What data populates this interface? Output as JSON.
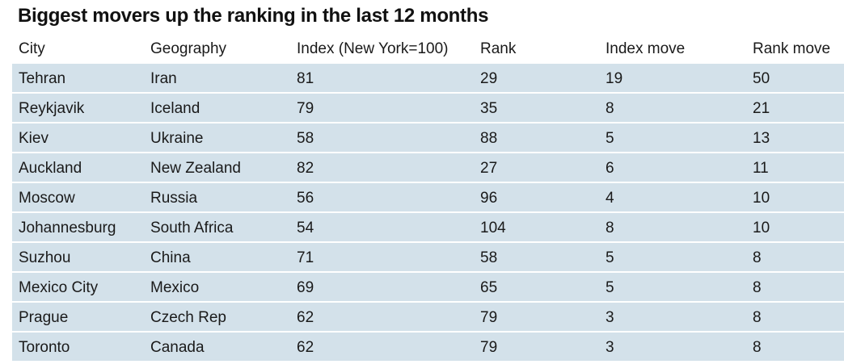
{
  "title": "Biggest movers up the ranking in the last 12 months",
  "table": {
    "headers": [
      "City",
      "Geography",
      "Index (New York=100)",
      "Rank",
      "Index move",
      "Rank move"
    ],
    "rows": [
      [
        "Tehran",
        "Iran",
        "81",
        "29",
        "19",
        "50"
      ],
      [
        "Reykjavik",
        "Iceland",
        "79",
        "35",
        "8",
        "21"
      ],
      [
        "Kiev",
        "Ukraine",
        "58",
        "88",
        "5",
        "13"
      ],
      [
        "Auckland",
        "New Zealand",
        "82",
        "27",
        "6",
        "11"
      ],
      [
        "Moscow",
        "Russia",
        "56",
        "96",
        "4",
        "10"
      ],
      [
        "Johannesburg",
        "South Africa",
        "54",
        "104",
        "8",
        "10"
      ],
      [
        "Suzhou",
        "China",
        "71",
        "58",
        "5",
        "8"
      ],
      [
        "Mexico City",
        "Mexico",
        "69",
        "65",
        "5",
        "8"
      ],
      [
        "Prague",
        "Czech Rep",
        "62",
        "79",
        "3",
        "8"
      ],
      [
        "Toronto",
        "Canada",
        "62",
        "79",
        "3",
        "8"
      ]
    ]
  },
  "colors": {
    "row_background": "#d3e1ea",
    "text": "#1a1a1a"
  }
}
